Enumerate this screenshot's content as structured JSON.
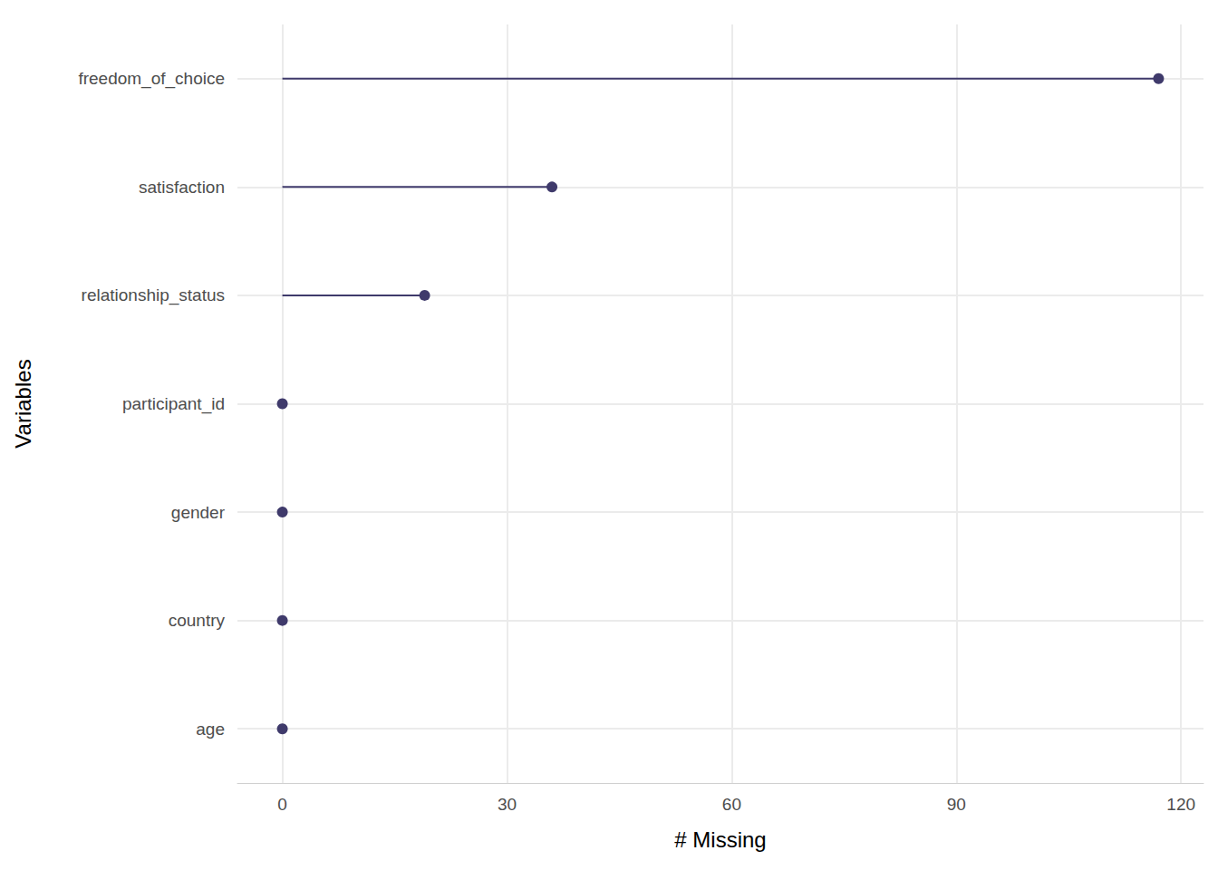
{
  "chart_data": {
    "type": "lollipop",
    "orientation": "horizontal",
    "x_label": "# Missing",
    "y_label": "Variables",
    "categories": [
      "freedom_of_choice",
      "satisfaction",
      "relationship_status",
      "participant_id",
      "gender",
      "country",
      "age"
    ],
    "values": [
      117,
      36,
      19,
      0,
      0,
      0,
      0
    ],
    "color": "#3f3a6b",
    "xlim": [
      -6,
      123
    ],
    "xticks": [
      0,
      30,
      60,
      90,
      120
    ],
    "grid": true
  }
}
